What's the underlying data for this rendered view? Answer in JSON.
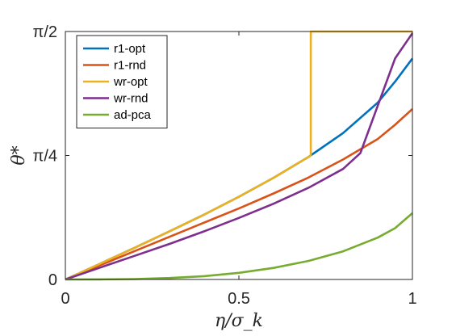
{
  "chart_data": {
    "type": "line",
    "title": "",
    "xlabel": "η/σ_k",
    "ylabel": "θ*",
    "xlim": [
      0,
      1
    ],
    "ylim": [
      0,
      1.5708
    ],
    "xticks": [
      {
        "value": 0,
        "label": "0"
      },
      {
        "value": 0.5,
        "label": "0.5"
      },
      {
        "value": 1,
        "label": "1"
      }
    ],
    "yticks": [
      {
        "value": 0,
        "label": "0"
      },
      {
        "value": 0.7854,
        "label": "π/4"
      },
      {
        "value": 1.5708,
        "label": "π/2"
      }
    ],
    "grid": false,
    "legend_position": "top-left",
    "series": [
      {
        "name": "r1-opt",
        "color": "#0072BD",
        "x": [
          0,
          0.1,
          0.2,
          0.3,
          0.4,
          0.5,
          0.6,
          0.7,
          0.8,
          0.9,
          0.95,
          1.0
        ],
        "y": [
          0,
          0.1,
          0.201,
          0.305,
          0.411,
          0.524,
          0.644,
          0.775,
          0.927,
          1.12,
          1.253,
          1.4
        ]
      },
      {
        "name": "r1-rnd",
        "color": "#D95319",
        "x": [
          0,
          0.1,
          0.2,
          0.3,
          0.4,
          0.5,
          0.6,
          0.7,
          0.8,
          0.9,
          0.95,
          1.0
        ],
        "y": [
          0,
          0.09,
          0.18,
          0.27,
          0.36,
          0.45,
          0.545,
          0.645,
          0.76,
          0.89,
          0.98,
          1.08
        ]
      },
      {
        "name": "wr-opt",
        "color": "#EDB120",
        "x": [
          0,
          0.1,
          0.2,
          0.3,
          0.4,
          0.5,
          0.6,
          0.7,
          0.7071,
          0.7071,
          1.0
        ],
        "y": [
          0,
          0.1,
          0.201,
          0.305,
          0.411,
          0.524,
          0.644,
          0.775,
          0.7854,
          1.5708,
          1.5708
        ]
      },
      {
        "name": "wr-rnd",
        "color": "#7E2F8E",
        "x": [
          0,
          0.1,
          0.2,
          0.3,
          0.4,
          0.5,
          0.6,
          0.7,
          0.8,
          0.85,
          0.9,
          0.95,
          1.0
        ],
        "y": [
          0,
          0.075,
          0.15,
          0.225,
          0.305,
          0.39,
          0.48,
          0.58,
          0.7,
          0.8,
          1.1,
          1.4,
          1.56
        ]
      },
      {
        "name": "ad-pca",
        "color": "#77AC30",
        "x": [
          0,
          0.1,
          0.2,
          0.3,
          0.4,
          0.5,
          0.6,
          0.7,
          0.8,
          0.9,
          0.95,
          1.0
        ],
        "y": [
          0,
          0.0003,
          0.0027,
          0.009,
          0.021,
          0.042,
          0.073,
          0.117,
          0.178,
          0.265,
          0.325,
          0.42
        ]
      }
    ]
  }
}
